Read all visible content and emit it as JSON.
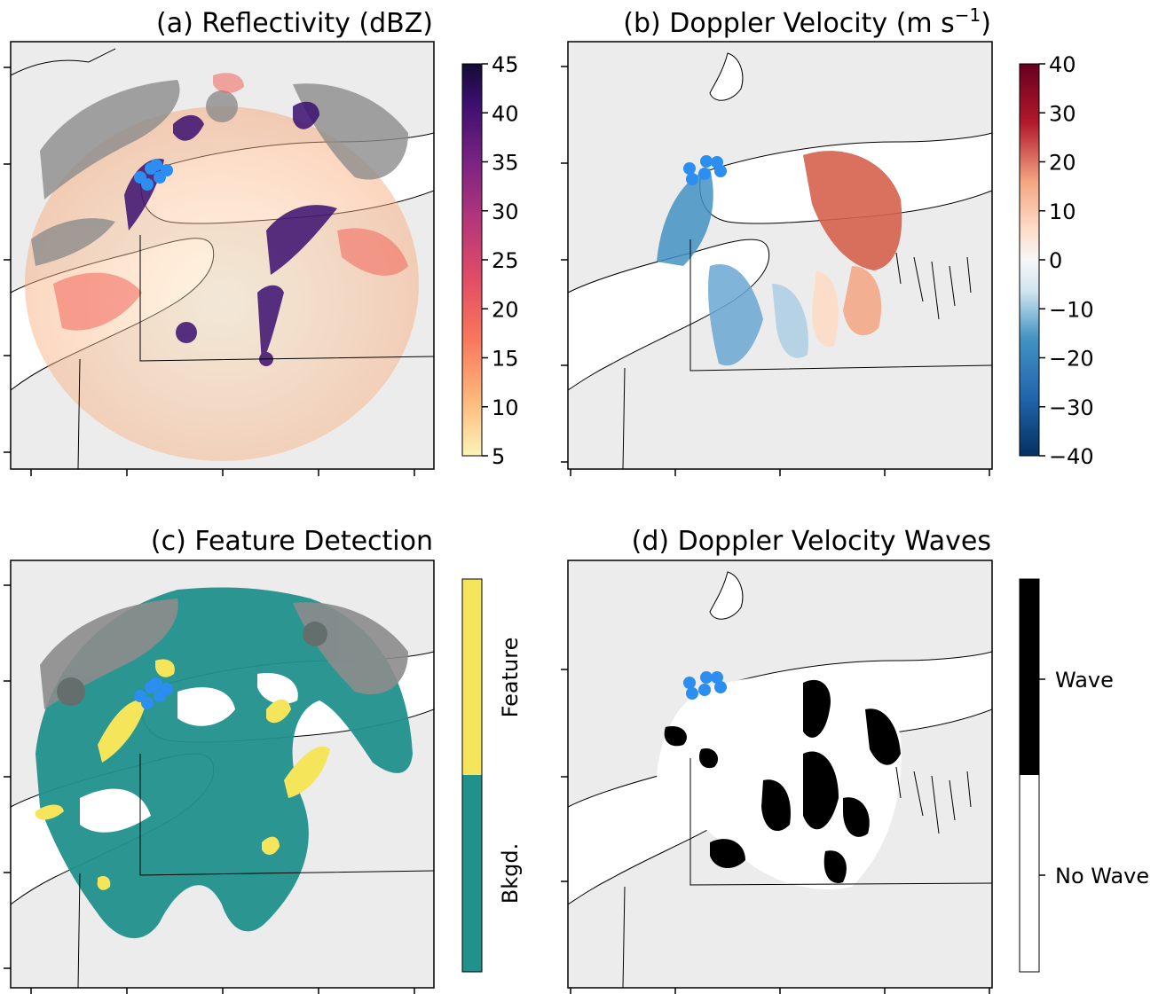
{
  "chart_data": [
    {
      "type": "heatmap",
      "panel": "a",
      "title": "(a) Reflectivity (dBZ)",
      "colorbar": {
        "colormap": "magma_r",
        "range": [
          5,
          45
        ],
        "ticks": [
          5,
          10,
          15,
          20,
          25,
          30,
          35,
          40,
          45
        ]
      }
    },
    {
      "type": "heatmap",
      "panel": "b",
      "title": "(b) Doppler Velocity (m s",
      "title_superscript": "−1",
      "title_suffix": ")",
      "colorbar": {
        "colormap": "RdBu_r",
        "range": [
          -40,
          40
        ],
        "ticks": [
          "40",
          "30",
          "20",
          "10",
          "0",
          "−10",
          "−20",
          "−30",
          "−40"
        ]
      }
    },
    {
      "type": "heatmap",
      "panel": "c",
      "title": "(c) Feature Detection",
      "colorbar": {
        "categories": [
          "Feature",
          "Bkgd."
        ],
        "colors": [
          "#f5e55a",
          "#21918c"
        ]
      }
    },
    {
      "type": "heatmap",
      "panel": "d",
      "title": "(d) Doppler Velocity Waves",
      "colorbar": {
        "categories": [
          "Wave",
          "No Wave"
        ],
        "colors": [
          "#000000",
          "#ffffff"
        ]
      }
    }
  ],
  "colors": {
    "land": "#ececec",
    "lake": "#ffffff",
    "marker": "#2b8ef0",
    "gray_echo": "#8c8c8c"
  }
}
